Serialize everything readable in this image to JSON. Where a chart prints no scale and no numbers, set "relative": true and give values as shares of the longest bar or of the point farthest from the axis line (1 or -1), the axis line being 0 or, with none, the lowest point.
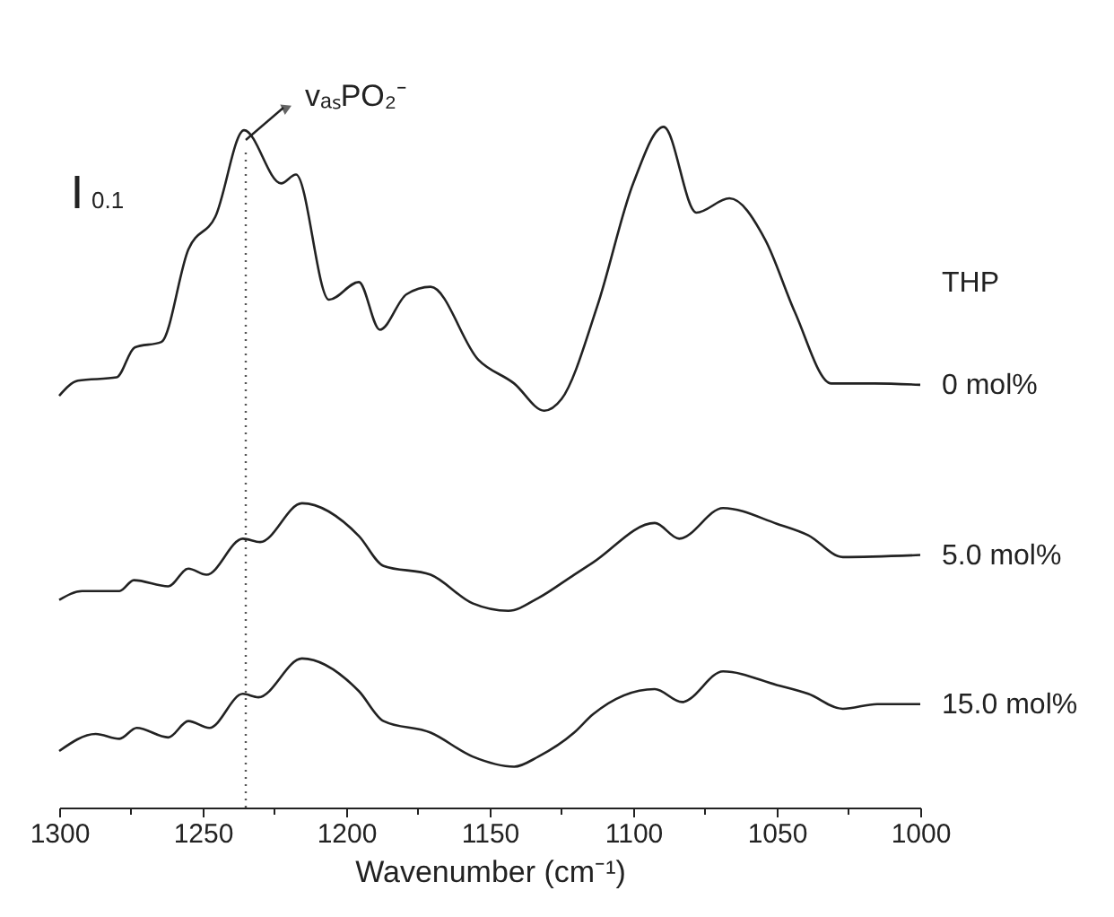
{
  "chart_data": {
    "type": "line",
    "relative": true,
    "xlabel": "Wavenumber (cm⁻¹)",
    "legend_title": "THP",
    "grid": false,
    "marker": "none",
    "line_style": "solid",
    "xlim": [
      1300,
      1000
    ],
    "xticks": [
      1300,
      {
        "value": 1275,
        "label": null
      },
      1250,
      {
        "value": 1225,
        "label": null
      },
      1200,
      {
        "value": 1175,
        "label": null
      },
      1150,
      {
        "value": 1125,
        "label": null
      },
      1100,
      {
        "value": 1075,
        "label": null
      },
      1050,
      {
        "value": 1025,
        "label": null
      },
      1000
    ],
    "ref_lines": [
      {
        "axis": "x",
        "value": 1235,
        "label": "vₐₛPO₂⁻",
        "line_style": "dotted",
        "color": "#555555"
      }
    ],
    "annotations": [
      "0.1"
    ],
    "series": [
      {
        "name": "0 mol%",
        "color": "#222222",
        "x": [
          1300,
          1293.5,
          1280,
          1273.7,
          1264.4,
          1255,
          1245.6,
          1235.6,
          1222.7,
          1217.5,
          1206,
          1195.6,
          1188.3,
          1179,
          1170.6,
          1154,
          1141.5,
          1131,
          1125,
          1112.5,
          1100,
          1089.4,
          1078,
          1066.5,
          1054,
          1043.7,
          1031,
          1016,
          1000
        ],
        "values": [
          0.605,
          0.627,
          0.632,
          0.676,
          0.684,
          0.82,
          0.868,
          0.995,
          0.917,
          0.93,
          0.746,
          0.772,
          0.702,
          0.754,
          0.765,
          0.658,
          0.623,
          0.583,
          0.6,
          0.737,
          0.917,
          1.0,
          0.874,
          0.895,
          0.834,
          0.728,
          0.623,
          0.623,
          0.621
        ]
      },
      {
        "name": "5.0 mol%",
        "color": "#222222",
        "x": [
          1300,
          1292,
          1279,
          1274,
          1262,
          1255,
          1248.7,
          1236,
          1230,
          1215.4,
          1195.6,
          1187,
          1170.6,
          1156,
          1143.5,
          1133,
          1120.6,
          1114,
          1092.5,
          1084,
          1068.7,
          1050,
          1039,
          1027,
          1000
        ],
        "values": [
          0.305,
          0.318,
          0.318,
          0.334,
          0.325,
          0.351,
          0.342,
          0.395,
          0.39,
          0.447,
          0.399,
          0.355,
          0.342,
          0.3,
          0.289,
          0.308,
          0.342,
          0.36,
          0.418,
          0.395,
          0.44,
          0.417,
          0.4,
          0.368,
          0.371
        ]
      },
      {
        "name": "15.0 mol%",
        "color": "#222222",
        "x": [
          1300,
          1287.3,
          1279,
          1273,
          1262,
          1255,
          1247.7,
          1236,
          1230.6,
          1215.4,
          1195.6,
          1187,
          1170.6,
          1156,
          1141.5,
          1133,
          1120.6,
          1114,
          1092.5,
          1083,
          1068.7,
          1050,
          1039,
          1027,
          1015,
          1000
        ],
        "values": [
          0.083,
          0.108,
          0.101,
          0.117,
          0.103,
          0.127,
          0.117,
          0.167,
          0.162,
          0.219,
          0.171,
          0.127,
          0.11,
          0.075,
          0.06,
          0.075,
          0.11,
          0.137,
          0.174,
          0.155,
          0.2,
          0.18,
          0.167,
          0.145,
          0.152,
          0.152
        ]
      }
    ]
  }
}
